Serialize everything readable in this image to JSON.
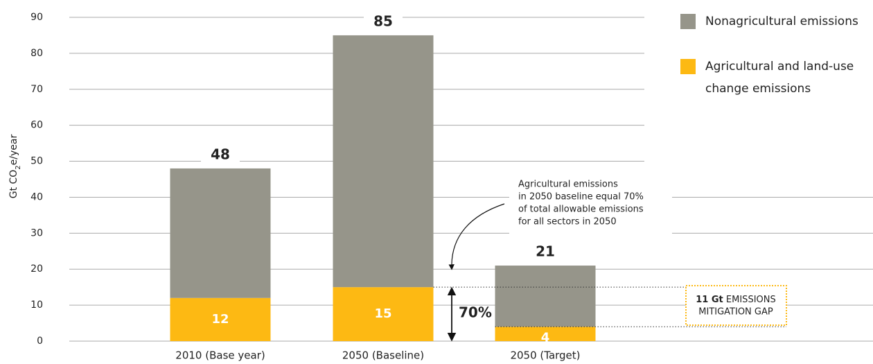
{
  "chart_data": {
    "type": "stacked_bar",
    "y_label": {
      "prefix": "Gt CO",
      "sub": "2",
      "suffix": "e/year"
    },
    "categories": [
      "2010 (Base year)",
      "2050 (Baseline)",
      "2050 (Target)"
    ],
    "series": [
      {
        "name": "Nonagricultural emissions",
        "color": "#96958a",
        "values": [
          36,
          70,
          17
        ]
      },
      {
        "name": "Agricultural and land-use change emissions",
        "color": "#fdb913",
        "values": [
          12,
          15,
          4
        ]
      }
    ],
    "totals": [
      48,
      85,
      21
    ],
    "ylim": [
      0,
      90
    ],
    "yticks": [
      0,
      10,
      20,
      30,
      40,
      50,
      60,
      70,
      80,
      90
    ],
    "grid": true,
    "legend": "top-right",
    "annotations": {
      "note_lines": [
        "Agricultural emissions",
        "in 2050 baseline equal 70%",
        "of total allowable emissions",
        "for all sectors in 2050"
      ],
      "share": "70%",
      "gap_amount": "11 Gt",
      "gap_word": "EMISSIONS",
      "gap_line2": "MITIGATION GAP"
    }
  }
}
